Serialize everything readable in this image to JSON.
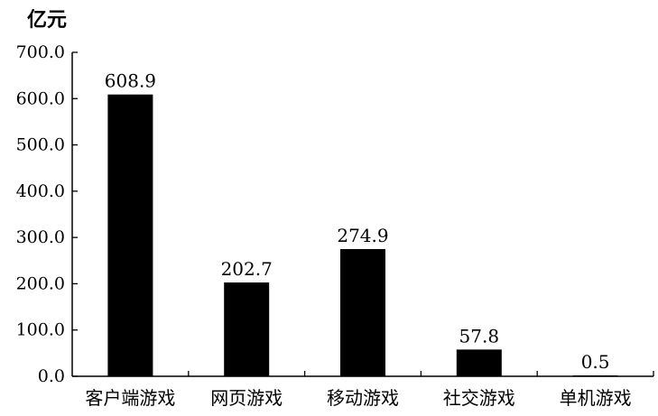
{
  "chart_data": {
    "type": "bar",
    "ylabel": "亿元",
    "categories": [
      "客户端游戏",
      "网页游戏",
      "移动游戏",
      "社交游戏",
      "单机游戏"
    ],
    "values": [
      608.9,
      202.7,
      274.9,
      57.8,
      0.5
    ],
    "value_labels": [
      "608.9",
      "202.7",
      "274.9",
      "57.8",
      "0.5"
    ],
    "ylim": [
      0,
      700
    ],
    "yticks": [
      0,
      100,
      200,
      300,
      400,
      500,
      600,
      700
    ],
    "ytick_labels": [
      "0.0",
      "100.0",
      "200.0",
      "300.0",
      "400.0",
      "500.0",
      "600.0",
      "700.0"
    ],
    "grid": false,
    "bar_color": "#000000"
  }
}
